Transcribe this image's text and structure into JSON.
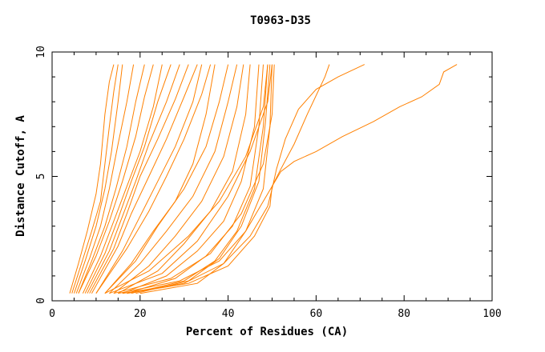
{
  "chart_data": {
    "type": "line",
    "title": "T0963-D35",
    "xlabel": "Percent of Residues (CA)",
    "ylabel": "Distance Cutoff, A",
    "xlim": [
      0,
      100
    ],
    "ylim": [
      0,
      10
    ],
    "x_ticks": [
      "0",
      "20",
      "40",
      "60",
      "80",
      "100"
    ],
    "y_ticks": [
      "0",
      "5",
      "10"
    ],
    "grid": false,
    "line_color": "#ff8000",
    "series": [
      {
        "points": [
          [
            4,
            0.3
          ],
          [
            6,
            1.5
          ],
          [
            8,
            2.8
          ],
          [
            10,
            4.3
          ],
          [
            11,
            5.5
          ],
          [
            12,
            7.5
          ],
          [
            13,
            8.8
          ],
          [
            14,
            9.5
          ]
        ]
      },
      {
        "points": [
          [
            4.5,
            0.3
          ],
          [
            6.5,
            1.4
          ],
          [
            9,
            2.8
          ],
          [
            11,
            4.0
          ],
          [
            12,
            5.5
          ],
          [
            13,
            7.0
          ],
          [
            14,
            8.4
          ],
          [
            15,
            9.5
          ]
        ]
      },
      {
        "points": [
          [
            5,
            0.3
          ],
          [
            7.5,
            1.6
          ],
          [
            10,
            3.0
          ],
          [
            12,
            4.5
          ],
          [
            13.5,
            6.0
          ],
          [
            15,
            8.0
          ],
          [
            16,
            9.5
          ]
        ]
      },
      {
        "points": [
          [
            5.5,
            0.3
          ],
          [
            8.5,
            1.7
          ],
          [
            11,
            3.0
          ],
          [
            13,
            4.5
          ],
          [
            15,
            6.3
          ],
          [
            17,
            8.0
          ],
          [
            18.5,
            9.5
          ]
        ]
      },
      {
        "points": [
          [
            6,
            0.3
          ],
          [
            9,
            1.6
          ],
          [
            12,
            3.0
          ],
          [
            14.5,
            4.5
          ],
          [
            17,
            6.2
          ],
          [
            19,
            8.0
          ],
          [
            21,
            9.5
          ]
        ]
      },
      {
        "points": [
          [
            6,
            0.3
          ],
          [
            10,
            1.8
          ],
          [
            13,
            3.2
          ],
          [
            16,
            4.8
          ],
          [
            19,
            6.6
          ],
          [
            21,
            8.2
          ],
          [
            23,
            9.5
          ]
        ]
      },
      {
        "points": [
          [
            7,
            0.3
          ],
          [
            11,
            1.8
          ],
          [
            14,
            3.2
          ],
          [
            17,
            4.6
          ],
          [
            20,
            6.0
          ],
          [
            23,
            7.8
          ],
          [
            25,
            9.5
          ]
        ]
      },
      {
        "points": [
          [
            7.5,
            0.3
          ],
          [
            12,
            1.9
          ],
          [
            15,
            3.3
          ],
          [
            18,
            4.8
          ],
          [
            21,
            6.2
          ],
          [
            24,
            8.0
          ],
          [
            27,
            9.5
          ]
        ]
      },
      {
        "points": [
          [
            8,
            0.3
          ],
          [
            13,
            2.0
          ],
          [
            16,
            3.4
          ],
          [
            19,
            4.8
          ],
          [
            22,
            6.3
          ],
          [
            26,
            8.0
          ],
          [
            29,
            9.5
          ]
        ]
      },
      {
        "points": [
          [
            8.5,
            0.3
          ],
          [
            14,
            2.1
          ],
          [
            17,
            3.5
          ],
          [
            20,
            5.0
          ],
          [
            24,
            6.5
          ],
          [
            28,
            8.1
          ],
          [
            31,
            9.5
          ]
        ]
      },
      {
        "points": [
          [
            9,
            0.3
          ],
          [
            15,
            2.2
          ],
          [
            18,
            3.5
          ],
          [
            22,
            5.0
          ],
          [
            26,
            6.5
          ],
          [
            30,
            8.2
          ],
          [
            33,
            9.5
          ]
        ]
      },
      {
        "points": [
          [
            10,
            0.3
          ],
          [
            16,
            2.0
          ],
          [
            20,
            3.4
          ],
          [
            24,
            4.8
          ],
          [
            28,
            6.2
          ],
          [
            32,
            8.0
          ],
          [
            34,
            9.5
          ]
        ]
      },
      {
        "points": [
          [
            10,
            0.3
          ],
          [
            17,
            2.1
          ],
          [
            22,
            3.6
          ],
          [
            26,
            5.0
          ],
          [
            30,
            6.5
          ],
          [
            34,
            8.3
          ],
          [
            36,
            9.5
          ]
        ]
      },
      {
        "points": [
          [
            12,
            0.3
          ],
          [
            18,
            1.5
          ],
          [
            23,
            2.8
          ],
          [
            28,
            4.0
          ],
          [
            32,
            5.5
          ],
          [
            35,
            7.5
          ],
          [
            37,
            9.5
          ]
        ]
      },
      {
        "points": [
          [
            12,
            0.3
          ],
          [
            19,
            1.6
          ],
          [
            24,
            3.0
          ],
          [
            30,
            4.5
          ],
          [
            35,
            6.2
          ],
          [
            38,
            8.0
          ],
          [
            40,
            9.5
          ]
        ]
      },
      {
        "points": [
          [
            13,
            0.3
          ],
          [
            20,
            1.5
          ],
          [
            26,
            2.8
          ],
          [
            32,
            4.2
          ],
          [
            37,
            6.0
          ],
          [
            40,
            8.0
          ],
          [
            42,
            9.5
          ]
        ]
      },
      {
        "points": [
          [
            14,
            0.3
          ],
          [
            22,
            1.4
          ],
          [
            28,
            2.6
          ],
          [
            34,
            4.0
          ],
          [
            39,
            5.8
          ],
          [
            42,
            7.8
          ],
          [
            43.5,
            9.5
          ]
        ]
      },
      {
        "points": [
          [
            15,
            0.3
          ],
          [
            24,
            1.2
          ],
          [
            30,
            2.3
          ],
          [
            36,
            3.6
          ],
          [
            41,
            5.2
          ],
          [
            44,
            7.5
          ],
          [
            45,
            9.5
          ]
        ]
      },
      {
        "points": [
          [
            16,
            0.3
          ],
          [
            26,
            1.0
          ],
          [
            33,
            2.0
          ],
          [
            39,
            3.2
          ],
          [
            43,
            4.8
          ],
          [
            46,
            7.0
          ],
          [
            47,
            9.5
          ]
        ]
      },
      {
        "points": [
          [
            17,
            0.3
          ],
          [
            28,
            0.9
          ],
          [
            35,
            1.8
          ],
          [
            41,
            3.0
          ],
          [
            45,
            4.6
          ],
          [
            47,
            7.0
          ],
          [
            48,
            9.5
          ]
        ]
      },
      {
        "points": [
          [
            18,
            0.3
          ],
          [
            30,
            0.8
          ],
          [
            37,
            1.6
          ],
          [
            42,
            2.8
          ],
          [
            46,
            4.5
          ],
          [
            48,
            7.0
          ],
          [
            49,
            9.5
          ]
        ]
      },
      {
        "points": [
          [
            19,
            0.3
          ],
          [
            31,
            0.8
          ],
          [
            38,
            1.7
          ],
          [
            43,
            3.0
          ],
          [
            47,
            4.8
          ],
          [
            48.5,
            7.2
          ],
          [
            49.5,
            9.5
          ]
        ]
      },
      {
        "points": [
          [
            20,
            0.3
          ],
          [
            33,
            0.7
          ],
          [
            39,
            1.5
          ],
          [
            44,
            2.8
          ],
          [
            48,
            4.5
          ],
          [
            49.5,
            7.0
          ],
          [
            50,
            9.5
          ]
        ]
      },
      {
        "points": [
          [
            14,
            0.3
          ],
          [
            27,
            0.9
          ],
          [
            36,
            1.9
          ],
          [
            43,
            3.5
          ],
          [
            48,
            5.5
          ],
          [
            50,
            7.5
          ],
          [
            50.5,
            9.5
          ]
        ]
      },
      {
        "points": [
          [
            13,
            0.3
          ],
          [
            25,
            1.1
          ],
          [
            33,
            2.4
          ],
          [
            40,
            4.2
          ],
          [
            45,
            6.0
          ],
          [
            49,
            8.0
          ],
          [
            50,
            9.5
          ]
        ]
      },
      {
        "points": [
          [
            12,
            0.3
          ],
          [
            22,
            1.2
          ],
          [
            31,
            2.6
          ],
          [
            38,
            4.0
          ],
          [
            44,
            5.8
          ],
          [
            48,
            7.8
          ],
          [
            49,
            9.5
          ]
        ]
      },
      {
        "points": [
          [
            15,
            0.3
          ],
          [
            29,
            0.8
          ],
          [
            38,
            1.6
          ],
          [
            44,
            2.8
          ],
          [
            48,
            4.0
          ],
          [
            50,
            4.6
          ],
          [
            52,
            5.3
          ],
          [
            55,
            6.3
          ],
          [
            58,
            7.5
          ],
          [
            62,
            9.0
          ],
          [
            63,
            9.5
          ]
        ]
      },
      {
        "points": [
          [
            16,
            0.3
          ],
          [
            30,
            0.7
          ],
          [
            39,
            1.5
          ],
          [
            45,
            2.6
          ],
          [
            49,
            3.8
          ],
          [
            50,
            4.5
          ],
          [
            51,
            5.3
          ],
          [
            53,
            6.5
          ],
          [
            56,
            7.7
          ],
          [
            60,
            8.5
          ],
          [
            65,
            9.0
          ],
          [
            71,
            9.5
          ]
        ]
      },
      {
        "points": [
          [
            17,
            0.3
          ],
          [
            31,
            0.7
          ],
          [
            40,
            1.4
          ],
          [
            46,
            2.6
          ],
          [
            49.5,
            3.8
          ],
          [
            50,
            4.6
          ],
          [
            52,
            5.2
          ],
          [
            55,
            5.6
          ],
          [
            60,
            6.0
          ],
          [
            66,
            6.6
          ],
          [
            73,
            7.2
          ],
          [
            79,
            7.8
          ],
          [
            84,
            8.2
          ],
          [
            88,
            8.7
          ],
          [
            89,
            9.2
          ],
          [
            92,
            9.5
          ]
        ]
      }
    ]
  }
}
